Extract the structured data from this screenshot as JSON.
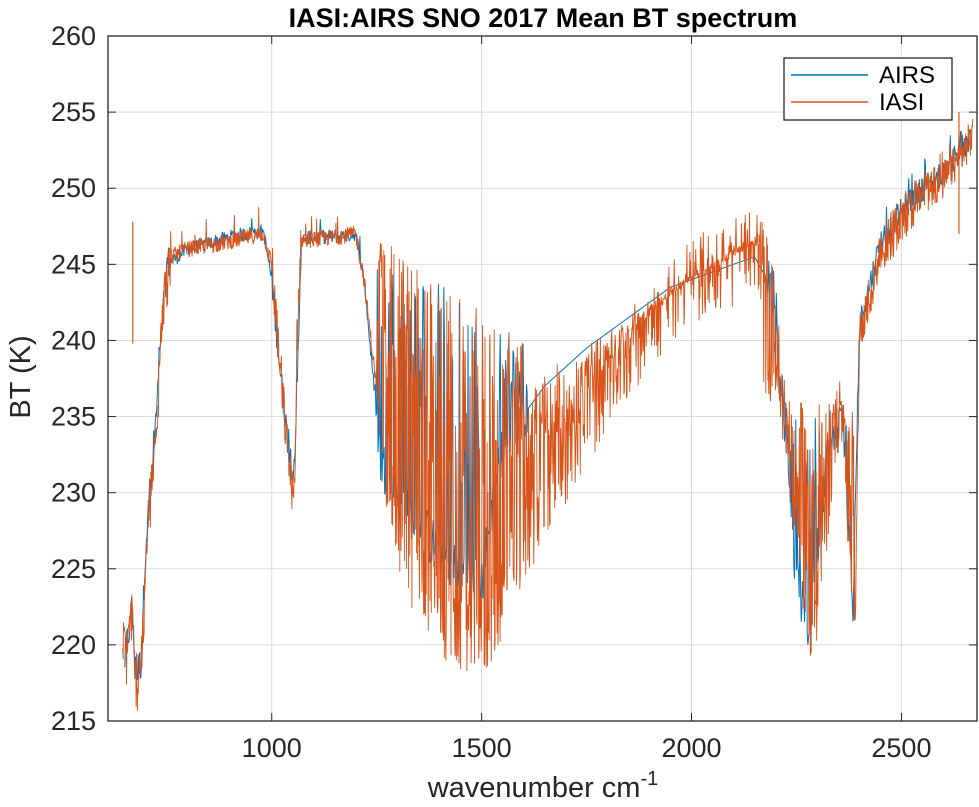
{
  "chart_data": {
    "type": "line",
    "title": "IASI:AIRS SNO 2017 Mean BT spectrum",
    "xlabel": "wavenumber cm",
    "xlabel_superscript": "-1",
    "ylabel": "BT (K)",
    "xlim": [
      610,
      2680
    ],
    "ylim": [
      215,
      260
    ],
    "xticks": [
      1000,
      1500,
      2000,
      2500
    ],
    "yticks": [
      215,
      220,
      225,
      230,
      235,
      240,
      245,
      250,
      255,
      260
    ],
    "grid": true,
    "legend_position": "top-right",
    "series": [
      {
        "name": "AIRS",
        "color": "#0072BD",
        "x": [
          650,
          660,
          668,
          675,
          690,
          700,
          715,
          730,
          750,
          800,
          900,
          980,
          1000,
          1020,
          1040,
          1055,
          1070,
          1090,
          1150,
          1200,
          1220,
          1240,
          1260,
          1300,
          1350,
          1400,
          1450,
          1500,
          1540,
          1580,
          1610,
          1650,
          1750,
          1850,
          1950,
          2050,
          2150,
          2200,
          2250,
          2280,
          2320,
          2360,
          2385,
          2400,
          2450,
          2500,
          2550,
          2600,
          2650,
          2665
        ],
        "y": [
          219,
          221,
          222,
          218,
          219,
          227,
          231,
          237,
          245,
          246,
          246.8,
          247.2,
          244,
          238,
          233,
          231,
          246.5,
          246.8,
          246.8,
          247,
          244,
          238,
          232,
          230,
          228,
          226,
          225,
          224,
          232,
          235,
          235.5,
          237,
          239.5,
          241.5,
          243.5,
          244.5,
          245.5,
          243,
          224,
          221,
          232,
          235,
          222,
          241,
          246.5,
          248.5,
          250,
          251,
          252.5,
          253
        ]
      },
      {
        "name": "IASI",
        "color": "#D95319",
        "x": [
          645,
          655,
          662,
          667,
          672,
          680,
          690,
          700,
          710,
          725,
          740,
          760,
          800,
          900,
          980,
          1000,
          1020,
          1040,
          1055,
          1060,
          1070,
          1090,
          1150,
          1200,
          1220,
          1245,
          1270,
          1300,
          1320,
          1360,
          1400,
          1450,
          1500,
          1530,
          1560,
          1600,
          1640,
          1680,
          1720,
          1760,
          1800,
          1850,
          1900,
          1950,
          2000,
          2050,
          2100,
          2150,
          2190,
          2210,
          2240,
          2270,
          2290,
          2320,
          2340,
          2360,
          2380,
          2390,
          2400,
          2450,
          2500,
          2550,
          2600,
          2640,
          2670
        ],
        "y": [
          220,
          219,
          221,
          222,
          218,
          217.5,
          219,
          224,
          229,
          233,
          242,
          245.5,
          246,
          246.5,
          247,
          245,
          238,
          232,
          229,
          240,
          246.5,
          246.6,
          246.8,
          247,
          244,
          238,
          232,
          228,
          226,
          224,
          222,
          221,
          220.5,
          222,
          224,
          227,
          229,
          231,
          233,
          235,
          237,
          239,
          241,
          242.5,
          244,
          244.5,
          245,
          246,
          244,
          238,
          230,
          224,
          220,
          228,
          234,
          236,
          223,
          222,
          240,
          245.5,
          247.5,
          249.5,
          250.5,
          252,
          253.5
        ],
        "peaks": [
          [
            669,
            247.8
          ],
          [
            2637,
            255
          ]
        ]
      }
    ]
  }
}
